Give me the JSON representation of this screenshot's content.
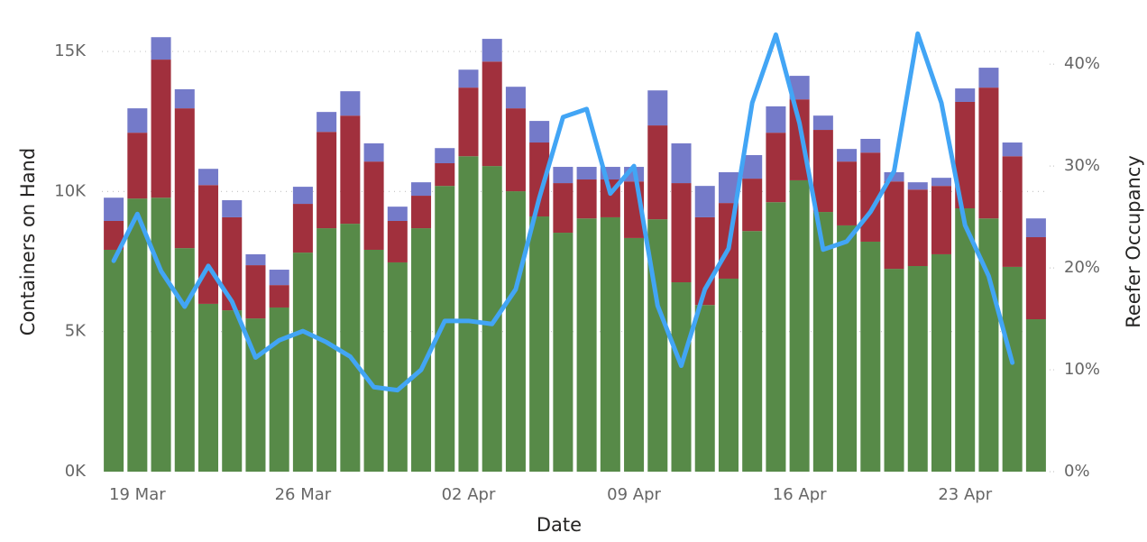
{
  "chart_data": {
    "type": "bar-line",
    "x_label": "Date",
    "y_label": "Containers on Hand",
    "y2_label": "Reefer Occupancy",
    "categories": [
      null,
      "19 Mar",
      null,
      null,
      null,
      null,
      null,
      null,
      "26 Mar",
      null,
      null,
      null,
      null,
      null,
      null,
      "02 Apr",
      null,
      null,
      null,
      null,
      null,
      null,
      "09 Apr",
      null,
      null,
      null,
      null,
      null,
      null,
      "16 Apr",
      null,
      null,
      null,
      null,
      null,
      null,
      "23 Apr",
      null,
      null,
      null
    ],
    "series": [
      {
        "type": "bar",
        "color": "#578a48",
        "values": [
          7920,
          9750,
          9780,
          7980,
          5990,
          5760,
          5470,
          5860,
          7820,
          8690,
          8850,
          7920,
          7470,
          8690,
          10200,
          11260,
          10910,
          10010,
          9110,
          8530,
          9040,
          9080,
          8340,
          9010,
          6760,
          5950,
          6890,
          8590,
          9620,
          10400,
          9270,
          8790,
          8210,
          7240,
          7340,
          7760,
          9400,
          9040,
          7310,
          5440
        ]
      },
      {
        "type": "bar",
        "color": "#a1303d",
        "values": [
          1030,
          2350,
          4930,
          4990,
          4240,
          3320,
          1900,
          800,
          1740,
          3440,
          3860,
          3150,
          1480,
          1160,
          810,
          2450,
          3730,
          2960,
          2640,
          1770,
          1390,
          1350,
          2020,
          3350,
          3540,
          3130,
          2700,
          1870,
          2480,
          2890,
          2930,
          2280,
          3180,
          3120,
          2730,
          2440,
          3800,
          4670,
          3950,
          2930
        ]
      },
      {
        "type": "bar",
        "color": "#747ac9",
        "values": [
          830,
          870,
          800,
          680,
          580,
          610,
          390,
          550,
          610,
          710,
          870,
          650,
          510,
          480,
          540,
          640,
          810,
          770,
          770,
          580,
          450,
          450,
          520,
          1250,
          1420,
          1120,
          1100,
          840,
          940,
          840,
          510,
          450,
          490,
          330,
          260,
          290,
          480,
          710,
          490,
          670
        ]
      },
      {
        "type": "line",
        "axis": "y2",
        "color": "#42a5f5",
        "values": [
          20.7,
          25.3,
          19.7,
          16.2,
          20.2,
          16.7,
          11.2,
          12.9,
          13.8,
          12.7,
          11.3,
          8.3,
          8.0,
          10.0,
          14.8,
          14.8,
          14.5,
          17.9,
          26.9,
          34.8,
          35.6,
          27.3,
          30.0,
          16.3,
          10.4,
          17.9,
          21.9,
          36.2,
          42.9,
          34.2,
          21.8,
          22.6,
          25.5,
          29.5,
          43.0,
          36.2,
          24.2,
          19.2,
          10.7,
          null
        ]
      }
    ],
    "ylim": [
      0,
      16000
    ],
    "yticks": [
      {
        "value": 0,
        "label": "0K"
      },
      {
        "value": 5000,
        "label": "5K"
      },
      {
        "value": 10000,
        "label": "10K"
      },
      {
        "value": 15000,
        "label": "15K"
      }
    ],
    "y2lim": [
      0,
      44
    ],
    "y2ticks": [
      {
        "value": 0,
        "label": "0%"
      },
      {
        "value": 10,
        "label": "10%"
      },
      {
        "value": 20,
        "label": "20%"
      },
      {
        "value": 30,
        "label": "30%"
      },
      {
        "value": 40,
        "label": "40%"
      }
    ],
    "grid": true
  }
}
